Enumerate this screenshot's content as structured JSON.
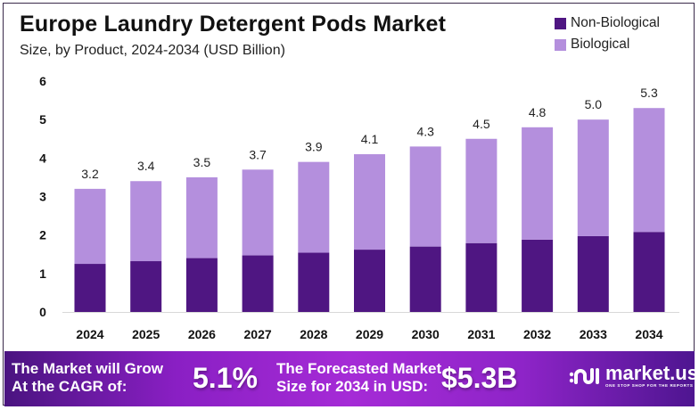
{
  "header": {
    "title": "Europe Laundry Detergent  Pods Market",
    "subtitle": "Size, by Product, 2024-2034 (USD Billion)"
  },
  "legend": [
    {
      "label": "Non-Biological",
      "color": "#4f1682"
    },
    {
      "label": "Biological",
      "color": "#b48fdd"
    }
  ],
  "chart_data": {
    "type": "bar",
    "stacked": true,
    "title": "Europe Laundry Detergent Pods Market",
    "subtitle": "Size, by Product, 2024-2034 (USD Billion)",
    "xlabel": "",
    "ylabel": "",
    "ylim": [
      0,
      6
    ],
    "yticks": [
      "0",
      "1",
      "2",
      "3",
      "4",
      "5",
      "6"
    ],
    "grid": false,
    "legend_position": "top-right",
    "categories": [
      "2024",
      "2025",
      "2026",
      "2027",
      "2028",
      "2029",
      "2030",
      "2031",
      "2032",
      "2033",
      "2034"
    ],
    "series": [
      {
        "name": "Non-Biological",
        "color": "#4f1682",
        "values": [
          1.25,
          1.32,
          1.4,
          1.47,
          1.54,
          1.62,
          1.7,
          1.79,
          1.88,
          1.97,
          2.08
        ]
      },
      {
        "name": "Biological",
        "color": "#b48fdd",
        "values": [
          1.95,
          2.08,
          2.1,
          2.23,
          2.36,
          2.48,
          2.6,
          2.71,
          2.92,
          3.03,
          3.22
        ]
      }
    ],
    "totals": [
      3.2,
      3.4,
      3.5,
      3.7,
      3.9,
      4.1,
      4.3,
      4.5,
      4.8,
      5.0,
      5.3
    ],
    "total_labels": [
      "3.2",
      "3.4",
      "3.5",
      "3.7",
      "3.9",
      "4.1",
      "4.3",
      "4.5",
      "4.8",
      "5.0",
      "5.3"
    ]
  },
  "footer": {
    "cagr_text_line1": "The Market will Grow",
    "cagr_text_line2": "At the CAGR of:",
    "cagr_value": "5.1%",
    "forecast_text_line1": "The Forecasted Market",
    "forecast_text_line2": "Size for 2034 in USD:",
    "forecast_value": "$5.3B",
    "logo_name": "market.us",
    "logo_tagline": "ONE STOP SHOP FOR THE REPORTS",
    "logo_icon": "market-us-logo-icon"
  }
}
